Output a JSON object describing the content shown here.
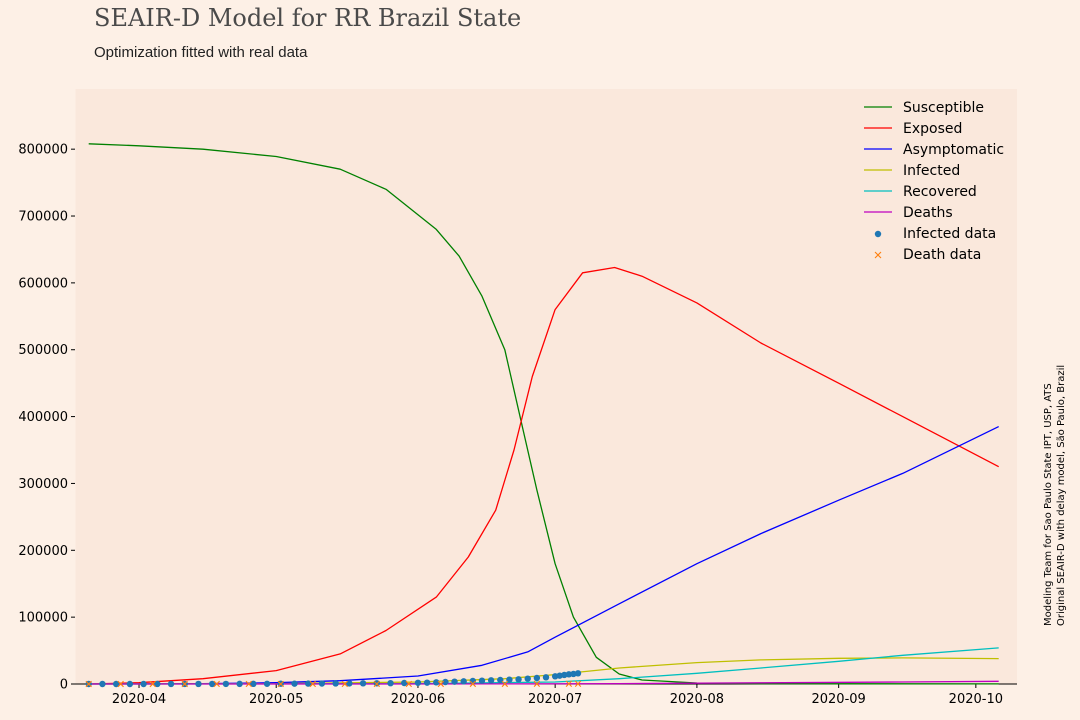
{
  "header": {
    "title": "SEAIR-D Model for RR Brazil State",
    "subtitle": "Optimization fitted with real data"
  },
  "side_note": {
    "line1": "Modeling Team for Sao Paulo State IPT, USP, ATS",
    "line2": "Original SEAIR-D with delay model, São Paulo, Brazil"
  },
  "colors": {
    "page_background": "#fdf0e6",
    "plot_background": "#fae8dc",
    "susceptible": "#008000",
    "exposed": "#ff0000",
    "asymptomatic": "#0000ff",
    "infected": "#bfbf00",
    "recovered": "#00bfbf",
    "deaths": "#bf00bf",
    "infected_data": "#1f77b4",
    "death_data": "#ff7f0e"
  },
  "chart_data": {
    "type": "line",
    "title": "SEAIR-D Model for RR Brazil State",
    "subtitle": "Optimization fitted with real data",
    "xlabel": "",
    "ylabel": "",
    "x_start": "2020-03-21",
    "x_end": "2020-10-06",
    "xlim": [
      "2020-03-18",
      "2020-10-10"
    ],
    "ylim": [
      0,
      890000
    ],
    "x_ticks": [
      "2020-04",
      "2020-05",
      "2020-06",
      "2020-07",
      "2020-08",
      "2020-09",
      "2020-10"
    ],
    "y_ticks": [
      0,
      100000,
      200000,
      300000,
      400000,
      500000,
      600000,
      700000,
      800000
    ],
    "grid": false,
    "legend_position": "top-right",
    "series": [
      {
        "name": "Susceptible",
        "kind": "line",
        "color_key": "susceptible",
        "points": [
          [
            "2020-03-21",
            808000
          ],
          [
            "2020-04-01",
            805000
          ],
          [
            "2020-04-15",
            800000
          ],
          [
            "2020-05-01",
            789000
          ],
          [
            "2020-05-15",
            770000
          ],
          [
            "2020-05-25",
            740000
          ],
          [
            "2020-06-05",
            680000
          ],
          [
            "2020-06-10",
            640000
          ],
          [
            "2020-06-15",
            580000
          ],
          [
            "2020-06-20",
            500000
          ],
          [
            "2020-06-24",
            380000
          ],
          [
            "2020-06-27",
            290000
          ],
          [
            "2020-07-01",
            180000
          ],
          [
            "2020-07-05",
            100000
          ],
          [
            "2020-07-10",
            40000
          ],
          [
            "2020-07-15",
            15000
          ],
          [
            "2020-07-20",
            6000
          ],
          [
            "2020-08-01",
            1500
          ],
          [
            "2020-08-15",
            500
          ],
          [
            "2020-10-06",
            200
          ]
        ]
      },
      {
        "name": "Exposed",
        "kind": "line",
        "color_key": "exposed",
        "points": [
          [
            "2020-03-21",
            0
          ],
          [
            "2020-04-01",
            2000
          ],
          [
            "2020-04-15",
            8000
          ],
          [
            "2020-05-01",
            20000
          ],
          [
            "2020-05-15",
            45000
          ],
          [
            "2020-05-25",
            80000
          ],
          [
            "2020-06-05",
            130000
          ],
          [
            "2020-06-12",
            190000
          ],
          [
            "2020-06-18",
            260000
          ],
          [
            "2020-06-22",
            350000
          ],
          [
            "2020-06-26",
            460000
          ],
          [
            "2020-07-01",
            560000
          ],
          [
            "2020-07-07",
            615000
          ],
          [
            "2020-07-14",
            623000
          ],
          [
            "2020-07-20",
            610000
          ],
          [
            "2020-08-01",
            570000
          ],
          [
            "2020-08-15",
            510000
          ],
          [
            "2020-09-01",
            450000
          ],
          [
            "2020-09-15",
            400000
          ],
          [
            "2020-10-06",
            325000
          ]
        ]
      },
      {
        "name": "Asymptomatic",
        "kind": "line",
        "color_key": "asymptomatic",
        "points": [
          [
            "2020-03-21",
            0
          ],
          [
            "2020-04-15",
            500
          ],
          [
            "2020-05-01",
            2000
          ],
          [
            "2020-05-15",
            5000
          ],
          [
            "2020-06-01",
            12000
          ],
          [
            "2020-06-15",
            28000
          ],
          [
            "2020-06-25",
            48000
          ],
          [
            "2020-07-01",
            70000
          ],
          [
            "2020-07-15",
            120000
          ],
          [
            "2020-08-01",
            180000
          ],
          [
            "2020-08-15",
            225000
          ],
          [
            "2020-09-01",
            275000
          ],
          [
            "2020-09-15",
            315000
          ],
          [
            "2020-10-06",
            385000
          ]
        ]
      },
      {
        "name": "Infected",
        "kind": "line",
        "color_key": "infected",
        "points": [
          [
            "2020-03-21",
            0
          ],
          [
            "2020-05-01",
            500
          ],
          [
            "2020-06-01",
            3000
          ],
          [
            "2020-06-20",
            8000
          ],
          [
            "2020-07-01",
            14000
          ],
          [
            "2020-07-15",
            24000
          ],
          [
            "2020-08-01",
            32000
          ],
          [
            "2020-08-15",
            36000
          ],
          [
            "2020-09-01",
            38500
          ],
          [
            "2020-09-15",
            39000
          ],
          [
            "2020-10-06",
            38000
          ]
        ]
      },
      {
        "name": "Recovered",
        "kind": "line",
        "color_key": "recovered",
        "points": [
          [
            "2020-03-21",
            0
          ],
          [
            "2020-06-01",
            500
          ],
          [
            "2020-07-01",
            3000
          ],
          [
            "2020-07-15",
            8000
          ],
          [
            "2020-08-01",
            16000
          ],
          [
            "2020-08-15",
            24000
          ],
          [
            "2020-09-01",
            34000
          ],
          [
            "2020-09-15",
            43000
          ],
          [
            "2020-10-06",
            54000
          ]
        ]
      },
      {
        "name": "Deaths",
        "kind": "line",
        "color_key": "deaths",
        "points": [
          [
            "2020-03-21",
            0
          ],
          [
            "2020-06-15",
            200
          ],
          [
            "2020-07-15",
            600
          ],
          [
            "2020-08-15",
            1800
          ],
          [
            "2020-09-15",
            3000
          ],
          [
            "2020-10-06",
            4000
          ]
        ]
      },
      {
        "name": "Infected data",
        "kind": "scatter",
        "marker": "circle",
        "color_key": "infected_data",
        "points": [
          [
            "2020-03-21",
            0
          ],
          [
            "2020-03-24",
            1
          ],
          [
            "2020-03-27",
            2
          ],
          [
            "2020-03-30",
            5
          ],
          [
            "2020-04-02",
            10
          ],
          [
            "2020-04-05",
            20
          ],
          [
            "2020-04-08",
            40
          ],
          [
            "2020-04-11",
            60
          ],
          [
            "2020-04-14",
            80
          ],
          [
            "2020-04-17",
            100
          ],
          [
            "2020-04-20",
            150
          ],
          [
            "2020-04-23",
            200
          ],
          [
            "2020-04-26",
            250
          ],
          [
            "2020-04-29",
            350
          ],
          [
            "2020-05-02",
            400
          ],
          [
            "2020-05-05",
            500
          ],
          [
            "2020-05-08",
            600
          ],
          [
            "2020-05-11",
            700
          ],
          [
            "2020-05-14",
            800
          ],
          [
            "2020-05-17",
            900
          ],
          [
            "2020-05-20",
            1000
          ],
          [
            "2020-05-23",
            1100
          ],
          [
            "2020-05-26",
            1200
          ],
          [
            "2020-05-29",
            1500
          ],
          [
            "2020-06-01",
            1800
          ],
          [
            "2020-06-03",
            2000
          ],
          [
            "2020-06-05",
            2500
          ],
          [
            "2020-06-07",
            3000
          ],
          [
            "2020-06-09",
            3500
          ],
          [
            "2020-06-11",
            4000
          ],
          [
            "2020-06-13",
            4500
          ],
          [
            "2020-06-15",
            5000
          ],
          [
            "2020-06-17",
            5500
          ],
          [
            "2020-06-19",
            6000
          ],
          [
            "2020-06-21",
            6500
          ],
          [
            "2020-06-23",
            7000
          ],
          [
            "2020-06-25",
            8000
          ],
          [
            "2020-06-27",
            9000
          ],
          [
            "2020-06-29",
            10000
          ],
          [
            "2020-07-01",
            11500
          ],
          [
            "2020-07-02",
            12500
          ],
          [
            "2020-07-03",
            13500
          ],
          [
            "2020-07-04",
            14500
          ],
          [
            "2020-07-05",
            15000
          ],
          [
            "2020-07-06",
            16000
          ]
        ]
      },
      {
        "name": "Death data",
        "kind": "scatter",
        "marker": "x",
        "color_key": "death_data",
        "points": [
          [
            "2020-03-21",
            0
          ],
          [
            "2020-03-28",
            0
          ],
          [
            "2020-04-04",
            1
          ],
          [
            "2020-04-11",
            2
          ],
          [
            "2020-04-18",
            4
          ],
          [
            "2020-04-25",
            6
          ],
          [
            "2020-05-02",
            10
          ],
          [
            "2020-05-09",
            20
          ],
          [
            "2020-05-16",
            30
          ],
          [
            "2020-05-23",
            50
          ],
          [
            "2020-05-30",
            80
          ],
          [
            "2020-06-06",
            110
          ],
          [
            "2020-06-13",
            150
          ],
          [
            "2020-06-20",
            180
          ],
          [
            "2020-06-27",
            210
          ],
          [
            "2020-07-04",
            240
          ],
          [
            "2020-07-06",
            250
          ]
        ]
      }
    ]
  }
}
